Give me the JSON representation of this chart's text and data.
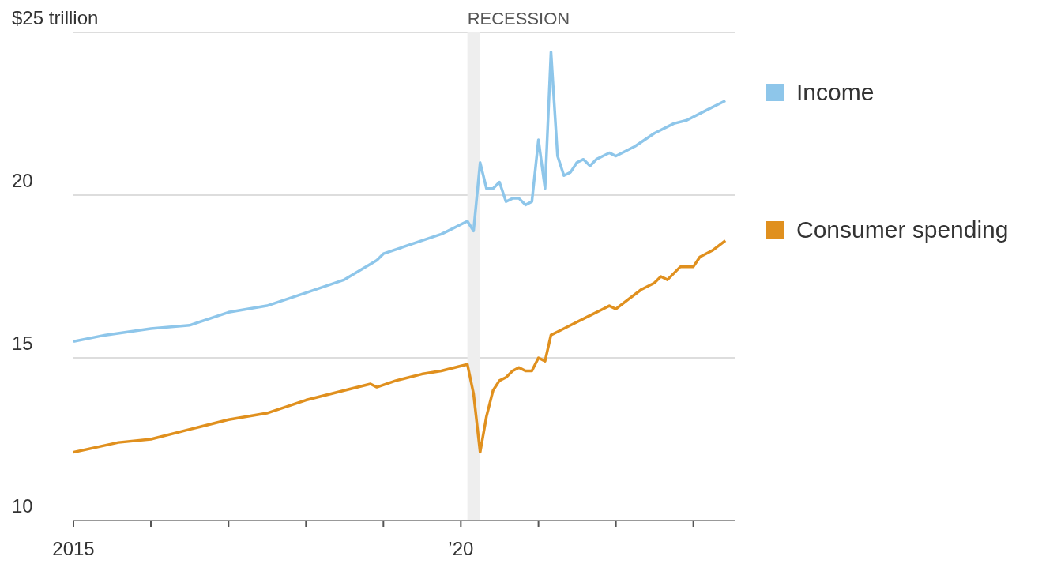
{
  "chart_data": {
    "type": "line",
    "xlim": [
      "2015-01",
      "2023-07-15"
    ],
    "xticks": [
      {
        "value": "2015",
        "label": "2015"
      },
      {
        "value": "2016",
        "label": null
      },
      {
        "value": "2017",
        "label": null
      },
      {
        "value": "2018",
        "label": null
      },
      {
        "value": "2019",
        "label": null
      },
      {
        "value": "2020",
        "label": "’20"
      },
      {
        "value": "2021",
        "label": null
      },
      {
        "value": "2022",
        "label": null
      },
      {
        "value": "2023",
        "label": null
      }
    ],
    "ylim": [
      10,
      25
    ],
    "yticks": [
      10,
      15,
      20,
      {
        "value": 25,
        "label": "$25 trillion"
      }
    ],
    "grid": "y",
    "legend": "right",
    "marker": "none",
    "line_style": "solid",
    "bands": [
      {
        "axis": "x",
        "from": "2020-02",
        "to": "2020-04",
        "label": "RECESSION",
        "color": "#eeeeee"
      }
    ],
    "series": [
      {
        "name": "Income",
        "color": "#8ec6ea",
        "x": [
          "2015-01",
          "2015-06",
          "2016-01",
          "2016-07",
          "2017-01",
          "2017-07",
          "2018-01",
          "2018-07",
          "2018-12",
          "2019-01",
          "2019-07",
          "2019-10",
          "2019-11",
          "2020-02",
          "2020-03",
          "2020-04",
          "2020-05",
          "2020-06",
          "2020-07",
          "2020-08",
          "2020-09",
          "2020-10",
          "2020-11",
          "2020-12",
          "2021-01",
          "2021-02",
          "2021-03",
          "2021-04",
          "2021-05",
          "2021-06",
          "2021-07",
          "2021-08",
          "2021-09",
          "2021-10",
          "2021-12",
          "2022-01",
          "2022-04",
          "2022-07",
          "2022-10",
          "2022-12",
          "2023-03",
          "2023-06"
        ],
        "values": [
          15.5,
          15.7,
          15.9,
          16.0,
          16.4,
          16.6,
          17.0,
          17.4,
          18.0,
          18.2,
          18.6,
          18.8,
          18.9,
          19.2,
          18.9,
          21.0,
          20.2,
          20.2,
          20.4,
          19.8,
          19.9,
          19.9,
          19.7,
          19.8,
          21.7,
          20.2,
          24.4,
          21.2,
          20.6,
          20.7,
          21.0,
          21.1,
          20.9,
          21.1,
          21.3,
          21.2,
          21.5,
          21.9,
          22.2,
          22.3,
          22.6,
          22.9
        ]
      },
      {
        "name": "Consumer spending",
        "color": "#e0901e",
        "x": [
          "2015-01",
          "2015-08",
          "2016-01",
          "2016-07",
          "2017-01",
          "2017-07",
          "2017-10",
          "2018-01",
          "2018-07",
          "2018-11",
          "2018-12",
          "2019-03",
          "2019-07",
          "2019-10",
          "2020-02",
          "2020-03",
          "2020-04",
          "2020-05",
          "2020-06",
          "2020-07",
          "2020-08",
          "2020-09",
          "2020-10",
          "2020-11",
          "2020-12",
          "2021-01",
          "2021-02",
          "2021-03",
          "2021-04",
          "2021-06",
          "2021-09",
          "2021-11",
          "2021-12",
          "2022-01",
          "2022-03",
          "2022-05",
          "2022-07",
          "2022-08",
          "2022-09",
          "2022-11",
          "2022-12",
          "2023-01",
          "2023-02",
          "2023-04",
          "2023-06"
        ],
        "values": [
          12.1,
          12.4,
          12.5,
          12.8,
          13.1,
          13.3,
          13.5,
          13.7,
          14.0,
          14.2,
          14.1,
          14.3,
          14.5,
          14.6,
          14.8,
          13.9,
          12.1,
          13.2,
          14.0,
          14.3,
          14.4,
          14.6,
          14.7,
          14.6,
          14.6,
          15.0,
          14.9,
          15.7,
          15.8,
          16.0,
          16.3,
          16.5,
          16.6,
          16.5,
          16.8,
          17.1,
          17.3,
          17.5,
          17.4,
          17.8,
          17.8,
          17.8,
          18.1,
          18.3,
          18.6
        ]
      }
    ]
  }
}
